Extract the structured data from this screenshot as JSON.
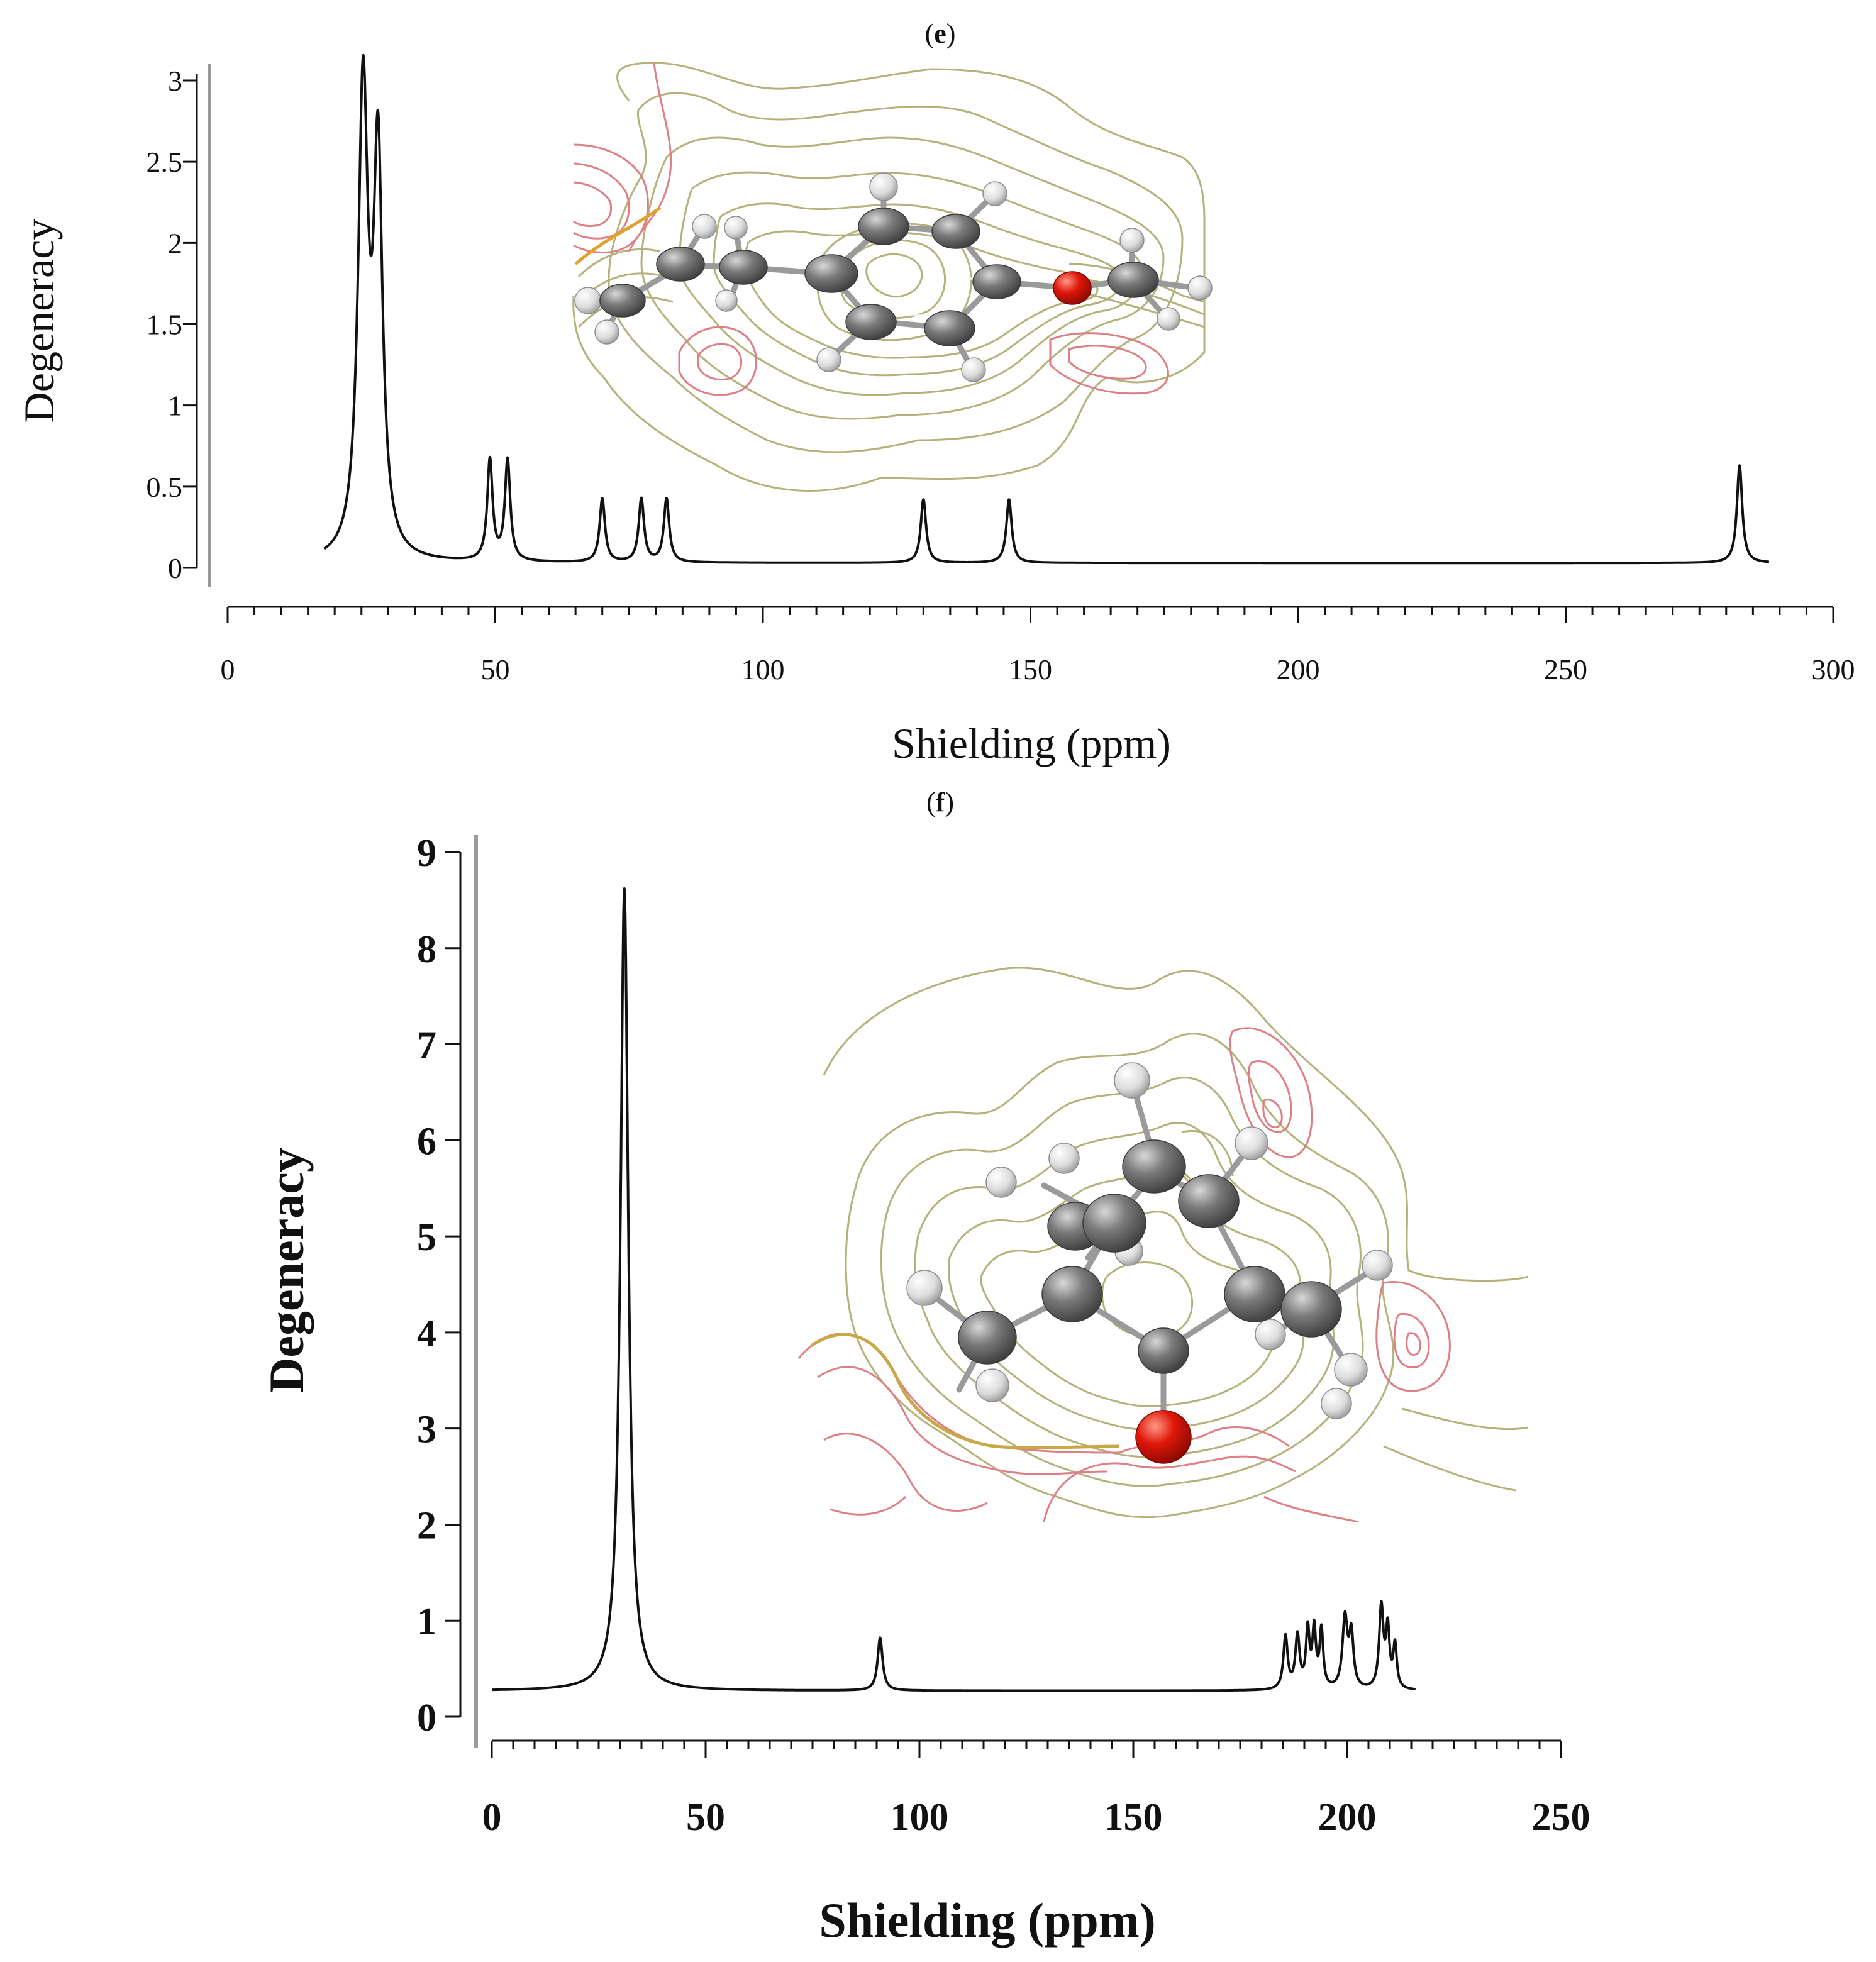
{
  "chart_data": [
    {
      "id": "e",
      "panel_label_pre": "(",
      "panel_label_letter": "e",
      "panel_label_post": ")",
      "type": "line",
      "xlabel": "Shielding (ppm)",
      "ylabel": "Degeneracy",
      "xlim": [
        0,
        300
      ],
      "ylim": [
        0,
        3
      ],
      "x_ticks": [
        0,
        50,
        100,
        150,
        200,
        250,
        300
      ],
      "y_ticks": [
        0,
        0.5,
        1,
        1.5,
        2,
        2.5,
        3
      ],
      "y_tick_labels": [
        "0",
        "0.5",
        "1",
        "1.5",
        "2",
        "2.5",
        "3"
      ],
      "x_minor_step": 5,
      "baseline": 0.03,
      "range": [
        18,
        288
      ],
      "line_color": "#111111",
      "peaks": [
        {
          "x": 25.3,
          "h": 2.85,
          "w": 1.1
        },
        {
          "x": 28.1,
          "h": 2.4,
          "w": 1.0
        },
        {
          "x": 49.0,
          "h": 0.62,
          "w": 0.6
        },
        {
          "x": 52.3,
          "h": 0.62,
          "w": 0.6
        },
        {
          "x": 70.0,
          "h": 0.39,
          "w": 0.6
        },
        {
          "x": 77.3,
          "h": 0.39,
          "w": 0.6
        },
        {
          "x": 82.0,
          "h": 0.39,
          "w": 0.6
        },
        {
          "x": 130.0,
          "h": 0.39,
          "w": 0.6
        },
        {
          "x": 146.0,
          "h": 0.39,
          "w": 0.6
        },
        {
          "x": 282.5,
          "h": 0.6,
          "w": 0.6
        }
      ]
    },
    {
      "id": "f",
      "panel_label_pre": "(",
      "panel_label_letter": "f",
      "panel_label_post": ")",
      "type": "line",
      "xlabel": "Shielding (ppm)",
      "ylabel": "Degeneracy",
      "xlim": [
        0,
        250
      ],
      "ylim": [
        0,
        9
      ],
      "x_ticks": [
        0,
        50,
        100,
        150,
        200,
        250
      ],
      "y_ticks": [
        0,
        1,
        2,
        3,
        4,
        5,
        6,
        7,
        8,
        9
      ],
      "y_tick_labels": [
        "0",
        "1",
        "2",
        "3",
        "4",
        "5",
        "6",
        "7",
        "8",
        "9"
      ],
      "x_minor_step": 5,
      "baseline": 0.27,
      "range": [
        0,
        216
      ],
      "line_color": "#111111",
      "peaks": [
        {
          "x": 31.0,
          "h": 8.35,
          "w": 1.1
        },
        {
          "x": 90.8,
          "h": 0.55,
          "w": 0.7
        },
        {
          "x": 185.6,
          "h": 0.55,
          "w": 0.6
        },
        {
          "x": 188.4,
          "h": 0.55,
          "w": 0.6
        },
        {
          "x": 190.8,
          "h": 0.6,
          "w": 0.5
        },
        {
          "x": 192.3,
          "h": 0.6,
          "w": 0.5
        },
        {
          "x": 194.0,
          "h": 0.6,
          "w": 0.5
        },
        {
          "x": 199.5,
          "h": 0.73,
          "w": 0.7
        },
        {
          "x": 201.0,
          "h": 0.55,
          "w": 0.6
        },
        {
          "x": 208.0,
          "h": 0.85,
          "w": 0.6
        },
        {
          "x": 209.5,
          "h": 0.6,
          "w": 0.5
        },
        {
          "x": 211.2,
          "h": 0.45,
          "w": 0.5
        }
      ]
    }
  ],
  "colors": {
    "contour_olive": "#b4b27a",
    "contour_pink": "#de7f86",
    "atom_carbon": "#6f6f6f",
    "atom_hydrogen": "#e0e0e0",
    "atom_oxygen": "#d81c10",
    "bond": "#9a9a9a"
  },
  "inset_images": [
    "molecular-electrostatic-contour-map-e",
    "molecular-electrostatic-contour-map-f"
  ]
}
